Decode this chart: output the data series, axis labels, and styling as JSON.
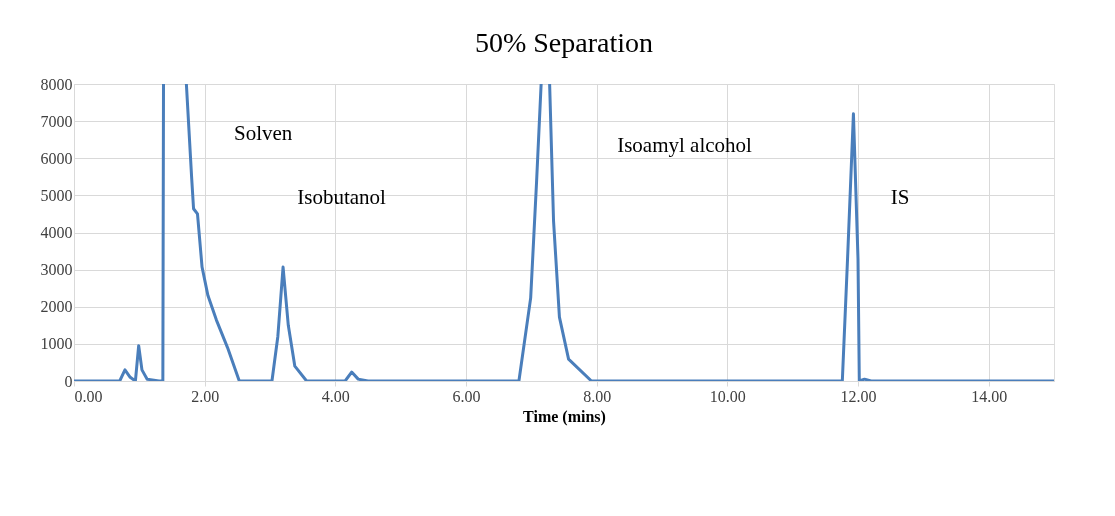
{
  "chart_data": {
    "type": "line",
    "title": "50% Separation",
    "xlabel": "Time (mins)",
    "x": [
      0,
      0.7,
      0.78,
      0.86,
      0.94,
      0.99,
      1.04,
      1.12,
      1.3,
      1.36,
      1.37,
      1.5,
      1.72,
      1.8,
      1.83,
      1.89,
      1.96,
      2.05,
      2.18,
      2.35,
      2.53,
      3.03,
      3.12,
      3.2,
      3.28,
      3.38,
      3.56,
      4.15,
      4.25,
      4.35,
      4.5,
      6.81,
      6.99,
      7.08,
      7.15,
      7.22,
      7.28,
      7.34,
      7.43,
      7.57,
      7.92,
      11.76,
      11.84,
      11.93,
      12.0,
      12.02,
      12.1,
      12.2,
      15
    ],
    "series": [
      {
        "color": "#4a7ebb",
        "values": [
          0,
          0,
          300,
          100,
          0,
          950,
          300,
          50,
          0,
          0,
          8000,
          null,
          8000,
          5500,
          4640,
          4500,
          3070,
          2300,
          1640,
          900,
          0,
          0,
          1200,
          3070,
          1500,
          400,
          0,
          0,
          240,
          50,
          0,
          0,
          2240,
          5360,
          8000,
          null,
          8000,
          4310,
          1720,
          590,
          0,
          0,
          3290,
          7200,
          3290,
          0,
          50,
          0,
          0
        ]
      }
    ],
    "xlim": [
      0,
      15
    ],
    "ylim": [
      0,
      8000
    ],
    "xticks": [
      {
        "value": 0,
        "label": "0.00"
      },
      {
        "value": 2,
        "label": "2.00"
      },
      {
        "value": 4,
        "label": "4.00"
      },
      {
        "value": 6,
        "label": "6.00"
      },
      {
        "value": 8,
        "label": "8.00"
      },
      {
        "value": 10,
        "label": "10.00"
      },
      {
        "value": 12,
        "label": "12.00"
      },
      {
        "value": 14,
        "label": "14.00"
      }
    ],
    "yticks": [
      0,
      1000,
      2000,
      3000,
      4000,
      5000,
      6000,
      7000,
      8000
    ],
    "grid": true,
    "marker": "none",
    "line_style": "solid",
    "annotations": [
      "Solven",
      "Isobutanol",
      "Isoamyl alcohol",
      "IS"
    ]
  }
}
